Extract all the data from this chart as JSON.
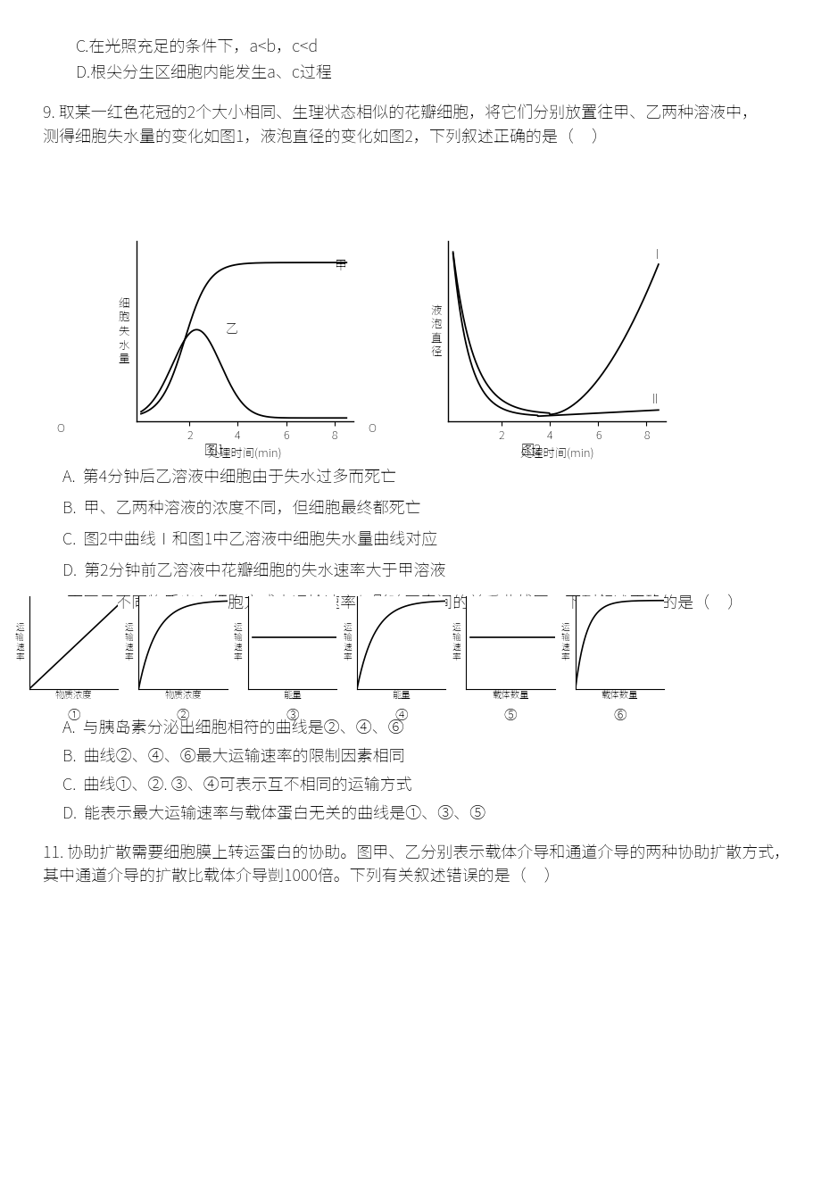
{
  "bg_color": "#ffffff",
  "line1": "C.在光照充足的条件下，a<b，c<d",
  "line2": "D.根尖分生区细胞内能发生a、c过程",
  "q9_text": "9. 取某一红色花冠的2个大小相同、生理状态相似的花瓣细胞，将它们分别放置往甲、乙两种溶液中，",
  "q9_text2": "测得细胞失水量的变化如图1，液泡直径的变化如图2，下列叙述正确的是（     ）",
  "fig1_ylabel": "细\n胞\n失\n水\n量",
  "fig1_xlabel": "处理时间(min)",
  "fig1_label_jia": "甲",
  "fig1_label_yi": "乙",
  "fig1_caption": "图1",
  "fig2_ylabel": "液\n泡\n直\n径",
  "fig2_xlabel": "处理时间(min)",
  "fig2_label_I": "I",
  "fig2_label_II": "II",
  "fig2_caption": "图2",
  "q9_optA": "A.  第4分钟后乙溶液中细胞由于失水过多而死亡",
  "q9_optB": "B.  甲、乙两种溶液的浓度不同，但细胞最终都死亡",
  "q9_optC": "C.  图2中曲线Ⅰ和图1中乙溶液中细胞失水量曲线对应",
  "q9_optD": "D.  第2分钟前乙溶液中花瓣细胞的失水速率大于甲溶液",
  "q10_intro": "10. 下图是不同物质出入细胞方式中运输速率与影响因素间的关系曲线图，下列叙述正确的是（     ）",
  "q10_optA": "A.  与胰岛素分泌出细胞相符的曲线是②、④、⑥",
  "q10_optB": "B.  曲线②、④、⑥最大运输速率的限制因素相同",
  "q10_optC": "C.  曲线①、②. ③、④可表示互不相同的运输方式",
  "q10_optD": "D.  能表示最大运输速率与载体蛋白无关的曲线是①、③、⑤",
  "q11_text": "11. 协助扩散需要细胞膜上转运蛋白的协助。图甲、乙分别表示载体介导和通道介导的两种协助扩散方式，",
  "q11_text2": "其中通道介导的扩散比载体介导剴1000倍。下列有关叙述错误的是（     ）",
  "subplot_ylabel": "运\n输\n速\n率",
  "subplot_xlabels": [
    "物质浓度",
    "物质浓度",
    "能量",
    "能量",
    "载体数量",
    "载体数量"
  ],
  "subplot_indices": [
    "①",
    "②",
    "③",
    "④",
    "⑤",
    "⑥"
  ]
}
